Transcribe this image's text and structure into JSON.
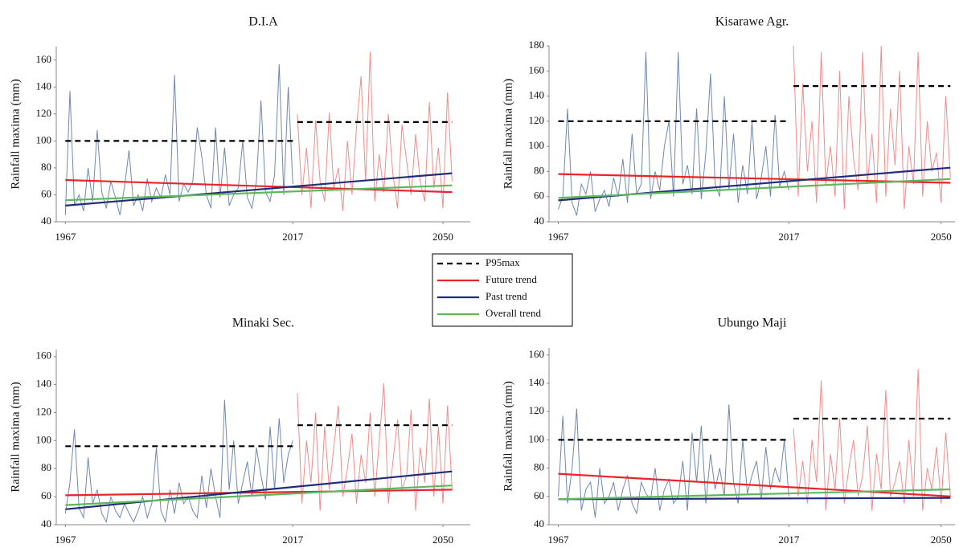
{
  "chart_data": [
    {
      "type": "line",
      "title": "D.I.A",
      "y_label": "Rainfall maxima (mm)",
      "xlim": [
        1965,
        2056
      ],
      "ylim": [
        40,
        170
      ],
      "xticks": [
        1967,
        2017,
        2050
      ],
      "yticks": [
        40,
        60,
        80,
        100,
        120,
        140,
        160
      ],
      "series": [
        {
          "color": "#7088b0",
          "x": [
            1967,
            1968,
            1969,
            1970,
            1971,
            1972,
            1973,
            1974,
            1975,
            1976,
            1977,
            1978,
            1979,
            1980,
            1981,
            1982,
            1983,
            1984,
            1985,
            1986,
            1987,
            1988,
            1989,
            1990,
            1991,
            1992,
            1993,
            1994,
            1995,
            1996,
            1997,
            1998,
            1999,
            2000,
            2001,
            2002,
            2003,
            2004,
            2005,
            2006,
            2007,
            2008,
            2009,
            2010,
            2011,
            2012,
            2013,
            2014,
            2015,
            2016,
            2017
          ],
          "values": [
            45,
            137,
            52,
            60,
            48,
            80,
            55,
            108,
            62,
            50,
            70,
            58,
            45,
            66,
            93,
            52,
            60,
            48,
            72,
            55,
            65,
            58,
            75,
            60,
            149,
            55,
            68,
            62,
            70,
            110,
            88,
            60,
            50,
            110,
            58,
            95,
            52,
            60,
            65,
            100,
            58,
            50,
            70,
            130,
            62,
            55,
            75,
            157,
            60,
            140,
            68
          ]
        },
        {
          "color": "#f58a8a",
          "x": [
            2018,
            2019,
            2020,
            2021,
            2022,
            2023,
            2024,
            2025,
            2026,
            2027,
            2028,
            2029,
            2030,
            2031,
            2032,
            2033,
            2034,
            2035,
            2036,
            2037,
            2038,
            2039,
            2040,
            2041,
            2042,
            2043,
            2044,
            2045,
            2046,
            2047,
            2048,
            2049,
            2050,
            2051,
            2052
          ],
          "values": [
            120,
            60,
            95,
            50,
            115,
            70,
            55,
            121,
            65,
            80,
            48,
            100,
            60,
            110,
            148,
            70,
            166,
            55,
            90,
            62,
            120,
            75,
            50,
            112,
            85,
            60,
            105,
            70,
            55,
            129,
            65,
            95,
            50,
            136,
            70
          ]
        },
        {
          "color": "#000000",
          "dash": true,
          "x": [
            1967,
            2017
          ],
          "values": [
            100,
            100
          ]
        },
        {
          "color": "#000000",
          "dash": true,
          "x": [
            2018,
            2052
          ],
          "values": [
            114,
            114
          ]
        },
        {
          "color": "#e8262a",
          "x": [
            1967,
            2052
          ],
          "values": [
            71,
            62
          ]
        },
        {
          "color": "#1f2d7a",
          "x": [
            1967,
            2052
          ],
          "values": [
            52,
            76
          ]
        },
        {
          "color": "#5cb85c",
          "x": [
            1967,
            2052
          ],
          "values": [
            56,
            67
          ]
        }
      ]
    },
    {
      "type": "line",
      "title": "Kisarawe Agr.",
      "y_label": "Rainfall maxima (mm)",
      "xlim": [
        1965,
        2053
      ],
      "ylim": [
        40,
        180
      ],
      "xticks": [
        1967,
        2017,
        2050
      ],
      "yticks": [
        40,
        60,
        80,
        100,
        120,
        140,
        160,
        180
      ],
      "series": [
        {
          "color": "#7088b0",
          "x": [
            1967,
            1968,
            1969,
            1970,
            1971,
            1972,
            1973,
            1974,
            1975,
            1976,
            1977,
            1978,
            1979,
            1980,
            1981,
            1982,
            1983,
            1984,
            1985,
            1986,
            1987,
            1988,
            1989,
            1990,
            1991,
            1992,
            1993,
            1994,
            1995,
            1996,
            1997,
            1998,
            1999,
            2000,
            2001,
            2002,
            2003,
            2004,
            2005,
            2006,
            2007,
            2008,
            2009,
            2010,
            2011,
            2012,
            2013,
            2014,
            2015,
            2016,
            2017
          ],
          "values": [
            50,
            60,
            130,
            55,
            45,
            70,
            62,
            80,
            48,
            58,
            65,
            52,
            75,
            60,
            90,
            55,
            110,
            62,
            70,
            175,
            58,
            80,
            65,
            100,
            120,
            60,
            175,
            70,
            85,
            62,
            130,
            58,
            95,
            158,
            70,
            60,
            140,
            65,
            110,
            55,
            85,
            62,
            120,
            58,
            75,
            100,
            60,
            125,
            68,
            80,
            65
          ]
        },
        {
          "color": "#f58a8a",
          "x": [
            2018,
            2019,
            2020,
            2021,
            2022,
            2023,
            2024,
            2025,
            2026,
            2027,
            2028,
            2029,
            2030,
            2031,
            2032,
            2033,
            2034,
            2035,
            2036,
            2037,
            2038,
            2039,
            2040,
            2041,
            2042,
            2043,
            2044,
            2045,
            2046,
            2047,
            2048,
            2049,
            2050,
            2051,
            2052
          ],
          "values": [
            180,
            60,
            150,
            80,
            120,
            55,
            175,
            70,
            100,
            60,
            160,
            50,
            140,
            90,
            65,
            175,
            70,
            110,
            55,
            180,
            60,
            130,
            85,
            160,
            50,
            100,
            70,
            175,
            60,
            120,
            80,
            95,
            55,
            140,
            75
          ]
        },
        {
          "color": "#000000",
          "dash": true,
          "x": [
            1967,
            2017
          ],
          "values": [
            120,
            120
          ]
        },
        {
          "color": "#000000",
          "dash": true,
          "x": [
            2018,
            2052
          ],
          "values": [
            148,
            148
          ]
        },
        {
          "color": "#e8262a",
          "x": [
            1967,
            2052
          ],
          "values": [
            78,
            71
          ]
        },
        {
          "color": "#1f2d7a",
          "x": [
            1967,
            2052
          ],
          "values": [
            57,
            83
          ]
        },
        {
          "color": "#5cb85c",
          "x": [
            1967,
            2052
          ],
          "values": [
            59,
            74
          ]
        }
      ]
    },
    {
      "type": "line",
      "title": "Minaki Sec.",
      "y_label": "Rainfall maxima (mm)",
      "xlim": [
        1965,
        2056
      ],
      "ylim": [
        40,
        165
      ],
      "xticks": [
        1967,
        2017,
        2050
      ],
      "yticks": [
        40,
        60,
        80,
        100,
        120,
        140,
        160
      ],
      "series": [
        {
          "color": "#7088b0",
          "x": [
            1967,
            1968,
            1969,
            1970,
            1971,
            1972,
            1973,
            1974,
            1975,
            1976,
            1977,
            1978,
            1979,
            1980,
            1981,
            1982,
            1983,
            1984,
            1985,
            1986,
            1987,
            1988,
            1989,
            1990,
            1991,
            1992,
            1993,
            1994,
            1995,
            1996,
            1997,
            1998,
            1999,
            2000,
            2001,
            2002,
            2003,
            2004,
            2005,
            2006,
            2007,
            2008,
            2009,
            2010,
            2011,
            2012,
            2013,
            2014,
            2015,
            2016,
            2017
          ],
          "values": [
            48,
            70,
            108,
            52,
            45,
            88,
            55,
            65,
            48,
            42,
            60,
            50,
            45,
            55,
            48,
            42,
            50,
            60,
            45,
            55,
            95,
            50,
            42,
            65,
            48,
            70,
            55,
            60,
            50,
            45,
            75,
            52,
            80,
            60,
            45,
            129,
            65,
            100,
            55,
            70,
            85,
            60,
            95,
            75,
            58,
            110,
            65,
            116,
            70,
            90,
            100
          ]
        },
        {
          "color": "#f58a8a",
          "x": [
            2018,
            2019,
            2020,
            2021,
            2022,
            2023,
            2024,
            2025,
            2026,
            2027,
            2028,
            2029,
            2030,
            2031,
            2032,
            2033,
            2034,
            2035,
            2036,
            2037,
            2038,
            2039,
            2040,
            2041,
            2042,
            2043,
            2044,
            2045,
            2046,
            2047,
            2048,
            2049,
            2050,
            2051,
            2052
          ],
          "values": [
            134,
            55,
            100,
            70,
            120,
            50,
            110,
            65,
            95,
            125,
            60,
            80,
            105,
            55,
            90,
            70,
            120,
            60,
            100,
            141,
            55,
            85,
            115,
            65,
            75,
            122,
            50,
            95,
            70,
            130,
            60,
            110,
            55,
            125,
            65
          ]
        },
        {
          "color": "#000000",
          "dash": true,
          "x": [
            1967,
            2017
          ],
          "values": [
            96,
            96
          ]
        },
        {
          "color": "#000000",
          "dash": true,
          "x": [
            2018,
            2052
          ],
          "values": [
            111,
            111
          ]
        },
        {
          "color": "#e8262a",
          "x": [
            1967,
            2052
          ],
          "values": [
            61,
            65
          ]
        },
        {
          "color": "#1f2d7a",
          "x": [
            1967,
            2052
          ],
          "values": [
            51,
            78
          ]
        },
        {
          "color": "#5cb85c",
          "x": [
            1967,
            2052
          ],
          "values": [
            54,
            68
          ]
        }
      ]
    },
    {
      "type": "line",
      "title": "Ubungo Maji",
      "y_label": "Rainfall maxima (mm)",
      "xlim": [
        1965,
        2053
      ],
      "ylim": [
        40,
        165
      ],
      "xticks": [
        1967,
        2017,
        2050
      ],
      "yticks": [
        40,
        60,
        80,
        100,
        120,
        140,
        160
      ],
      "series": [
        {
          "color": "#7088b0",
          "x": [
            1967,
            1968,
            1969,
            1970,
            1971,
            1972,
            1973,
            1974,
            1975,
            1976,
            1977,
            1978,
            1979,
            1980,
            1981,
            1982,
            1983,
            1984,
            1985,
            1986,
            1987,
            1988,
            1989,
            1990,
            1991,
            1992,
            1993,
            1994,
            1995,
            1996,
            1997,
            1998,
            1999,
            2000,
            2001,
            2002,
            2003,
            2004,
            2005,
            2006,
            2007,
            2008,
            2009,
            2010,
            2011,
            2012,
            2013,
            2014,
            2015,
            2016,
            2017
          ],
          "values": [
            60,
            117,
            55,
            80,
            122,
            50,
            65,
            70,
            45,
            80,
            55,
            60,
            70,
            50,
            65,
            75,
            55,
            48,
            70,
            62,
            58,
            80,
            50,
            65,
            72,
            55,
            60,
            85,
            50,
            105,
            70,
            110,
            55,
            90,
            65,
            80,
            60,
            125,
            70,
            55,
            100,
            62,
            75,
            85,
            58,
            95,
            65,
            80,
            70,
            100,
            60
          ]
        },
        {
          "color": "#f58a8a",
          "x": [
            2018,
            2019,
            2020,
            2021,
            2022,
            2023,
            2024,
            2025,
            2026,
            2027,
            2028,
            2029,
            2030,
            2031,
            2032,
            2033,
            2034,
            2035,
            2036,
            2037,
            2038,
            2039,
            2040,
            2041,
            2042,
            2043,
            2044,
            2045,
            2046,
            2047,
            2048,
            2049,
            2050,
            2051,
            2052
          ],
          "values": [
            108,
            60,
            85,
            55,
            100,
            70,
            142,
            50,
            90,
            65,
            115,
            55,
            80,
            100,
            60,
            75,
            110,
            50,
            90,
            65,
            135,
            60,
            70,
            85,
            55,
            100,
            60,
            150,
            50,
            80,
            65,
            95,
            55,
            105,
            60
          ]
        },
        {
          "color": "#000000",
          "dash": true,
          "x": [
            1967,
            2017
          ],
          "values": [
            100,
            100
          ]
        },
        {
          "color": "#000000",
          "dash": true,
          "x": [
            2018,
            2052
          ],
          "values": [
            115,
            115
          ]
        },
        {
          "color": "#e8262a",
          "x": [
            1967,
            2052
          ],
          "values": [
            76,
            60
          ]
        },
        {
          "color": "#1f2d7a",
          "x": [
            1967,
            2052
          ],
          "values": [
            58,
            59
          ]
        },
        {
          "color": "#5cb85c",
          "x": [
            1967,
            2052
          ],
          "values": [
            58,
            65
          ]
        }
      ]
    },
    {
      "type": "legend",
      "entries": [
        {
          "name": "P95max",
          "color": "#000000",
          "dash": true
        },
        {
          "name": "Future trend",
          "color": "#e8262a"
        },
        {
          "name": "Past trend",
          "color": "#1f2d7a"
        },
        {
          "name": "Overall trend",
          "color": "#5cb85c"
        }
      ]
    }
  ]
}
